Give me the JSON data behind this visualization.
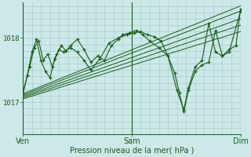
{
  "bg_color": "#cce8e8",
  "plot_bg_color": "#cce8e8",
  "grid_color": "#aacccc",
  "line_color": "#1a5c1a",
  "ylim": [
    1016.5,
    1018.55
  ],
  "yticks": [
    1017.0,
    1018.0
  ],
  "xlabel": "Pression niveau de la mer( hPa )",
  "xtick_labels": [
    "Ven",
    "Sam",
    "Dim"
  ],
  "xtick_positions": [
    0,
    48,
    96
  ],
  "x_total": 96,
  "fan_starts": [
    1017.05,
    1017.07,
    1017.09,
    1017.11,
    1017.13
  ],
  "fan_ends": [
    1018.1,
    1018.2,
    1018.3,
    1018.42,
    1018.5
  ],
  "s1_x": [
    0,
    3,
    5,
    7,
    9,
    11,
    13,
    15,
    17,
    19,
    21,
    24,
    27,
    30,
    33,
    36,
    39,
    42,
    44,
    47,
    50,
    53,
    56,
    60,
    64,
    68,
    71,
    73,
    76,
    79,
    82,
    85,
    88,
    91,
    94,
    96
  ],
  "s1_y": [
    1017.15,
    1017.55,
    1017.85,
    1017.95,
    1017.65,
    1017.75,
    1017.55,
    1017.75,
    1017.88,
    1017.8,
    1017.88,
    1017.98,
    1017.82,
    1017.62,
    1017.72,
    1017.65,
    1017.88,
    1017.98,
    1018.05,
    1018.08,
    1018.12,
    1018.05,
    1017.95,
    1017.85,
    1017.72,
    1017.18,
    1016.88,
    1017.22,
    1017.55,
    1017.65,
    1018.22,
    1017.78,
    1017.72,
    1017.82,
    1017.88,
    1018.45
  ],
  "s2_x": [
    0,
    2,
    4,
    6,
    8,
    10,
    12,
    14,
    16,
    18,
    21,
    24,
    27,
    30,
    34,
    38,
    42,
    46,
    49,
    52,
    55,
    58,
    61,
    64,
    67,
    69,
    71,
    73,
    76,
    79,
    82,
    85,
    88,
    91,
    96
  ],
  "s2_y": [
    1017.12,
    1017.42,
    1017.78,
    1017.98,
    1017.65,
    1017.48,
    1017.38,
    1017.68,
    1017.82,
    1017.78,
    1017.85,
    1017.78,
    1017.65,
    1017.5,
    1017.68,
    1017.92,
    1018.0,
    1018.05,
    1018.08,
    1018.1,
    1018.05,
    1018.02,
    1017.95,
    1017.72,
    1017.45,
    1017.15,
    1016.85,
    1017.18,
    1017.48,
    1017.58,
    1017.62,
    1018.12,
    1017.72,
    1017.78,
    1018.42
  ]
}
